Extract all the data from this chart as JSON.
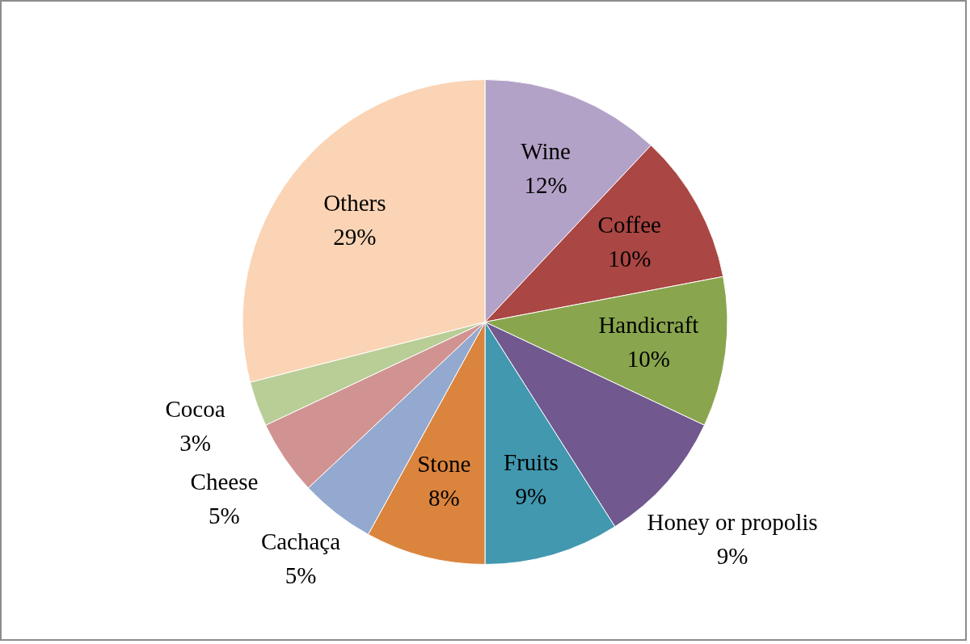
{
  "chart_data": {
    "type": "pie",
    "categories": [
      "Wine",
      "Coffee",
      "Handicraft",
      "Honey or propolis",
      "Fruits",
      "Stone",
      "Cachaça",
      "Cheese",
      "Cocoa",
      "Others"
    ],
    "values": [
      12,
      10,
      10,
      9,
      9,
      8,
      5,
      5,
      3,
      29
    ],
    "value_labels": [
      "12%",
      "10%",
      "10%",
      "9%",
      "9%",
      "8%",
      "5%",
      "5%",
      "3%",
      "29%"
    ],
    "colors": [
      "#b3a2c7",
      "#aa4643",
      "#89a54e",
      "#71588f",
      "#4198af",
      "#db843d",
      "#93a9cf",
      "#d19392",
      "#b9cd96",
      "#fad4b5"
    ]
  }
}
